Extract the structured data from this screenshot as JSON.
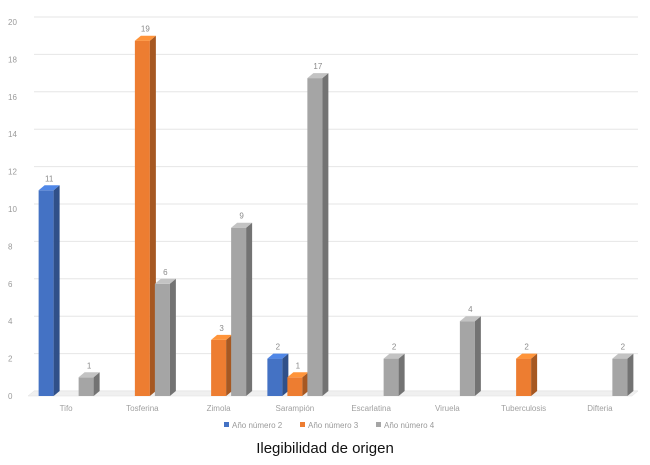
{
  "chart_data": {
    "type": "bar",
    "style": "3d-clustered-column",
    "categories": [
      "Tifo",
      "Tosferina",
      "Zimola",
      "Sarampión",
      "Escarlatina",
      "Viruela",
      "Tuberculosis",
      "Difteria"
    ],
    "series": [
      {
        "name": "Año número 2",
        "color": "#4472c4",
        "values": [
          11,
          null,
          null,
          2,
          null,
          null,
          null,
          null
        ]
      },
      {
        "name": "Año número 3",
        "color": "#ed7d31",
        "values": [
          null,
          19,
          3,
          1,
          null,
          null,
          2,
          null
        ]
      },
      {
        "name": "Año número 4",
        "color": "#a5a5a5",
        "values": [
          1,
          6,
          9,
          17,
          2,
          4,
          null,
          2
        ]
      }
    ],
    "yticks": [
      "0",
      "2",
      "4",
      "6",
      "8",
      "10",
      "12",
      "14",
      "16",
      "18",
      "20"
    ],
    "ylim": [
      0,
      20
    ],
    "grid": true,
    "legend_position": "bottom"
  },
  "caption": "Ilegibilidad de origen"
}
